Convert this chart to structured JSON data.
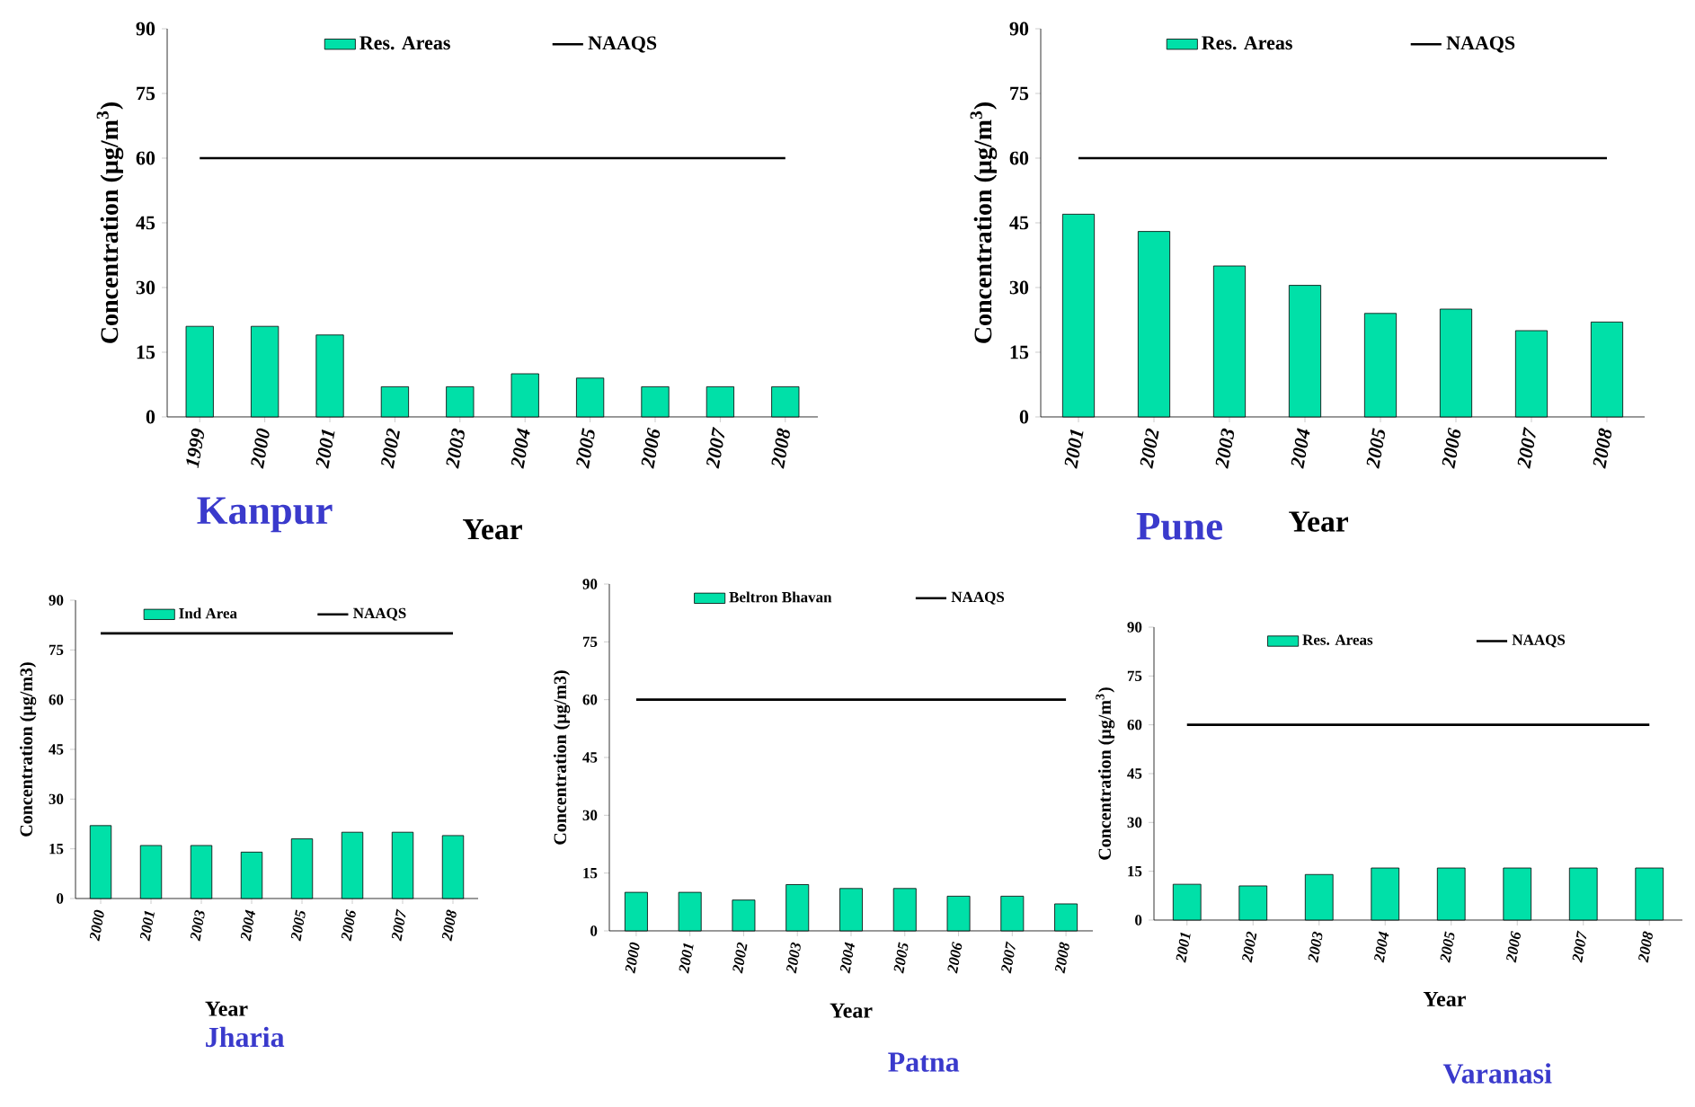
{
  "chart_data": [
    {
      "type": "bar",
      "title": "Kanpur",
      "xlabel": "Year",
      "ylabel": "Concentration (µg/m$^{3}$)",
      "categories": [
        "1999",
        "2000",
        "2001",
        "2002",
        "2003",
        "2004",
        "2005",
        "2006",
        "2007",
        "2008"
      ],
      "series": [
        {
          "name": "Res. Areas",
          "color": "#00e0a8",
          "values": [
            21,
            21,
            19,
            7,
            7,
            10,
            9,
            7,
            7,
            7
          ]
        },
        {
          "name": "NAAQS",
          "type": "line",
          "color": "#000000",
          "values": [
            60,
            60,
            60,
            60,
            60,
            60,
            60,
            60,
            60,
            60
          ]
        }
      ],
      "ylim": [
        0,
        90
      ],
      "yticks": [
        0,
        15,
        30,
        45,
        60,
        75,
        90
      ],
      "legend": "top"
    },
    {
      "type": "bar",
      "title": "Pune",
      "xlabel": "Year",
      "ylabel": "Concentration (µg/m$^{3}$)",
      "categories": [
        "2001",
        "2002",
        "2003",
        "2004",
        "2005",
        "2006",
        "2007",
        "2008"
      ],
      "series": [
        {
          "name": "Res. Areas",
          "color": "#00e0a8",
          "values": [
            47,
            43,
            35,
            30.5,
            24,
            25,
            20,
            22
          ]
        },
        {
          "name": "NAAQS",
          "type": "line",
          "color": "#000000",
          "values": [
            60,
            60,
            60,
            60,
            60,
            60,
            60,
            60
          ]
        }
      ],
      "ylim": [
        0,
        90
      ],
      "yticks": [
        0,
        15,
        30,
        45,
        60,
        75,
        90
      ],
      "legend": "top"
    },
    {
      "type": "bar",
      "title": "Jharia",
      "xlabel": "Year",
      "ylabel": "Concentration (µg/m3)",
      "categories": [
        "2000",
        "2001",
        "2003",
        "2004",
        "2005",
        "2006",
        "2007",
        "2008"
      ],
      "series": [
        {
          "name": "Ind Area",
          "color": "#00e0a8",
          "values": [
            22,
            16,
            16,
            14,
            18,
            20,
            20,
            19
          ]
        },
        {
          "name": "NAAQS",
          "type": "line",
          "color": "#000000",
          "values": [
            80,
            80,
            80,
            80,
            80,
            80,
            80,
            80
          ]
        }
      ],
      "ylim": [
        0,
        90
      ],
      "yticks": [
        0,
        15,
        30,
        45,
        60,
        75,
        90
      ],
      "legend": "top"
    },
    {
      "type": "bar",
      "title": "Patna",
      "xlabel": "Year",
      "ylabel": "Concentration (µg/m3)",
      "categories": [
        "2000",
        "2001",
        "2002",
        "2003",
        "2004",
        "2005",
        "2006",
        "2007",
        "2008"
      ],
      "series": [
        {
          "name": "Beltron Bhavan",
          "color": "#00e0a8",
          "values": [
            10,
            10,
            8,
            12,
            11,
            11,
            9,
            9,
            7
          ]
        },
        {
          "name": "NAAQS",
          "type": "line",
          "color": "#000000",
          "values": [
            60,
            60,
            60,
            60,
            60,
            60,
            60,
            60,
            60
          ]
        }
      ],
      "ylim": [
        0,
        90
      ],
      "yticks": [
        0,
        15,
        30,
        45,
        60,
        75,
        90
      ],
      "legend": "top"
    },
    {
      "type": "bar",
      "title": "Varanasi",
      "xlabel": "Year",
      "ylabel": "Concentration (µg/m$^{3}$)",
      "categories": [
        "2001",
        "2002",
        "2003",
        "2004",
        "2005",
        "2006",
        "2007",
        "2008"
      ],
      "series": [
        {
          "name": "Res. Areas",
          "color": "#00e0a8",
          "values": [
            11,
            10.5,
            14,
            16,
            16,
            16,
            16,
            16
          ]
        },
        {
          "name": "NAAQS",
          "type": "line",
          "color": "#000000",
          "values": [
            60,
            60,
            60,
            60,
            60,
            60,
            60,
            60
          ]
        }
      ],
      "ylim": [
        0,
        90
      ],
      "yticks": [
        0,
        15,
        30,
        45,
        60,
        75,
        90
      ],
      "legend": "top"
    }
  ]
}
